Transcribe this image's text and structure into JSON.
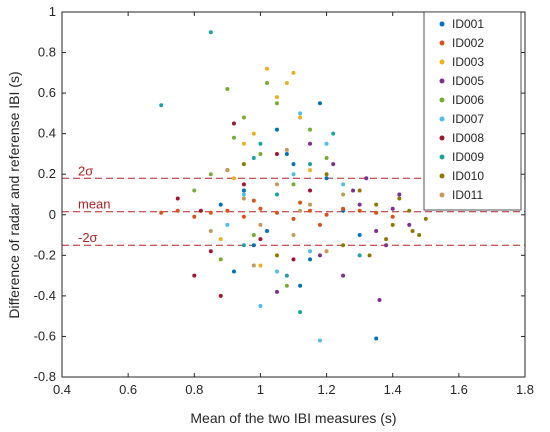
{
  "chart_data": {
    "type": "scatter",
    "title": "",
    "xlabel": "Mean of the two IBI measures (s)",
    "ylabel": "Difference of radar and referense IBI (s)",
    "xlim": [
      0.4,
      1.8
    ],
    "ylim": [
      -0.8,
      1.0
    ],
    "xticks": [
      "0.4",
      "0.6",
      "0.8",
      "1",
      "1.2",
      "1.4",
      "1.6",
      "1.8"
    ],
    "yticks": [
      "-0.8",
      "-0.6",
      "-0.4",
      "-0.2",
      "0",
      "0.2",
      "0.4",
      "0.6",
      "0.8",
      "1"
    ],
    "grid": false,
    "legend_position": "top-right",
    "reference_lines": [
      {
        "label": "2σ",
        "y": 0.18,
        "color": "#b22222"
      },
      {
        "label": "mean",
        "y": 0.015,
        "color": "#b22222"
      },
      {
        "label": "-2σ",
        "y": -0.15,
        "color": "#b22222"
      }
    ],
    "series": [
      {
        "name": "ID001",
        "color": "#0072bd",
        "points": [
          [
            0.95,
            0.12
          ],
          [
            1.02,
            -0.08
          ],
          [
            1.1,
            0.25
          ],
          [
            1.15,
            -0.22
          ],
          [
            0.88,
            0.05
          ],
          [
            1.2,
            0.18
          ],
          [
            1.05,
            0.42
          ],
          [
            0.98,
            -0.15
          ],
          [
            1.25,
            0.02
          ],
          [
            1.12,
            -0.35
          ],
          [
            1.35,
            -0.61
          ],
          [
            1.18,
            0.55
          ],
          [
            0.92,
            -0.28
          ],
          [
            1.08,
            0.3
          ],
          [
            1.3,
            -0.1
          ]
        ]
      },
      {
        "name": "ID002",
        "color": "#d95319",
        "points": [
          [
            0.9,
            0.02
          ],
          [
            0.95,
            -0.01
          ],
          [
            1.0,
            0.03
          ],
          [
            1.05,
            0.01
          ],
          [
            1.1,
            -0.02
          ],
          [
            1.15,
            0.02
          ],
          [
            1.2,
            0.0
          ],
          [
            1.25,
            0.03
          ],
          [
            0.85,
            0.01
          ],
          [
            0.8,
            -0.01
          ],
          [
            1.3,
            0.02
          ],
          [
            1.35,
            0.01
          ],
          [
            0.75,
            0.02
          ],
          [
            1.4,
            -0.01
          ],
          [
            0.7,
            0.01
          ],
          [
            1.12,
            0.06
          ],
          [
            0.98,
            0.07
          ],
          [
            1.18,
            -0.05
          ]
        ]
      },
      {
        "name": "ID003",
        "color": "#edb120",
        "points": [
          [
            1.02,
            0.72
          ],
          [
            1.08,
            0.65
          ],
          [
            0.95,
            0.35
          ],
          [
            1.12,
            0.48
          ],
          [
            0.88,
            -0.12
          ],
          [
            1.0,
            -0.25
          ],
          [
            1.15,
            0.22
          ],
          [
            1.05,
            0.58
          ],
          [
            0.92,
            0.18
          ],
          [
            1.2,
            -0.18
          ],
          [
            1.1,
            0.7
          ],
          [
            0.98,
            0.4
          ]
        ]
      },
      {
        "name": "ID005",
        "color": "#7e2f8e",
        "points": [
          [
            1.3,
            0.05
          ],
          [
            1.35,
            -0.08
          ],
          [
            1.28,
            0.12
          ],
          [
            1.4,
            0.03
          ],
          [
            1.38,
            -0.15
          ],
          [
            1.25,
            -0.3
          ],
          [
            1.32,
            0.18
          ],
          [
            1.45,
            -0.05
          ],
          [
            1.22,
            0.25
          ],
          [
            1.36,
            -0.42
          ],
          [
            1.18,
            -0.2
          ],
          [
            1.42,
            0.1
          ],
          [
            1.15,
            0.35
          ],
          [
            1.05,
            -0.38
          ]
        ]
      },
      {
        "name": "ID006",
        "color": "#77ac30",
        "points": [
          [
            0.9,
            0.62
          ],
          [
            0.95,
            0.48
          ],
          [
            1.0,
            0.3
          ],
          [
            0.85,
            0.2
          ],
          [
            1.05,
            0.55
          ],
          [
            0.98,
            -0.1
          ],
          [
            1.1,
            0.15
          ],
          [
            0.92,
            0.38
          ],
          [
            0.88,
            -0.22
          ],
          [
            1.15,
            0.42
          ],
          [
            1.02,
            0.65
          ],
          [
            0.8,
            0.12
          ],
          [
            1.08,
            -0.35
          ],
          [
            1.2,
            0.28
          ]
        ]
      },
      {
        "name": "ID007",
        "color": "#4dbeee",
        "points": [
          [
            1.0,
            -0.45
          ],
          [
            1.1,
            0.2
          ],
          [
            1.15,
            -0.18
          ],
          [
            1.2,
            0.35
          ],
          [
            0.95,
            0.1
          ],
          [
            1.05,
            -0.28
          ],
          [
            1.25,
            0.15
          ],
          [
            1.18,
            -0.62
          ],
          [
            1.12,
            0.5
          ],
          [
            0.9,
            -0.05
          ]
        ]
      },
      {
        "name": "ID008",
        "color": "#a2142f",
        "points": [
          [
            0.85,
            -0.18
          ],
          [
            0.9,
            0.22
          ],
          [
            0.8,
            -0.3
          ],
          [
            0.95,
            0.15
          ],
          [
            1.0,
            -0.12
          ],
          [
            0.75,
            0.08
          ],
          [
            1.05,
            0.3
          ],
          [
            0.88,
            -0.4
          ],
          [
            1.1,
            -0.22
          ],
          [
            0.92,
            0.45
          ],
          [
            0.82,
            0.02
          ],
          [
            1.15,
            0.12
          ]
        ]
      },
      {
        "name": "ID009",
        "color": "#1aa3a3",
        "points": [
          [
            0.85,
            0.9
          ],
          [
            0.7,
            0.54
          ],
          [
            1.0,
            0.35
          ],
          [
            1.08,
            -0.3
          ],
          [
            1.15,
            0.25
          ],
          [
            0.95,
            -0.15
          ],
          [
            1.22,
            0.4
          ],
          [
            1.05,
            0.1
          ],
          [
            1.12,
            -0.48
          ],
          [
            0.98,
            0.28
          ],
          [
            1.3,
            -0.2
          ]
        ]
      },
      {
        "name": "ID010",
        "color": "#8c7a00",
        "points": [
          [
            1.4,
            -0.05
          ],
          [
            1.45,
            0.02
          ],
          [
            1.48,
            -0.1
          ],
          [
            1.42,
            0.08
          ],
          [
            1.38,
            -0.12
          ],
          [
            1.35,
            0.05
          ],
          [
            1.5,
            -0.02
          ],
          [
            1.33,
            -0.2
          ],
          [
            1.46,
            -0.08
          ],
          [
            1.3,
            0.12
          ],
          [
            1.25,
            -0.15
          ],
          [
            1.2,
            0.2
          ],
          [
            0.95,
            0.25
          ],
          [
            1.05,
            -0.2
          ]
        ]
      },
      {
        "name": "ID011",
        "color": "#c49a5a",
        "points": [
          [
            0.95,
            0.08
          ],
          [
            1.0,
            -0.05
          ],
          [
            1.05,
            0.15
          ],
          [
            1.1,
            -0.1
          ],
          [
            1.15,
            0.05
          ],
          [
            0.9,
            0.22
          ],
          [
            1.2,
            -0.18
          ],
          [
            0.85,
            -0.08
          ],
          [
            1.25,
            0.1
          ],
          [
            1.08,
            0.32
          ],
          [
            0.98,
            -0.25
          ],
          [
            1.12,
            0.02
          ]
        ]
      }
    ]
  }
}
